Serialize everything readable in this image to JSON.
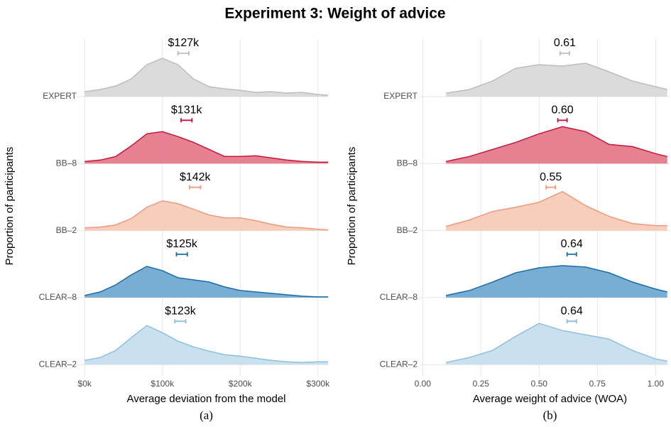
{
  "title": "Experiment 3: Weight of advice",
  "chart_data": [
    {
      "type": "ridgeline",
      "subfigure_label": "(a)",
      "ylabel": "Proportion of participants",
      "xlabel": "Average deviation from the model",
      "xlim": [
        -13000,
        313000
      ],
      "xticks": [
        {
          "value": 0,
          "label": "$0k"
        },
        {
          "value": 100000,
          "label": "$100k"
        },
        {
          "value": 200000,
          "label": "$200k"
        },
        {
          "value": 300000,
          "label": "$300k"
        }
      ],
      "grid": true,
      "x": [
        0,
        20000,
        40000,
        60000,
        80000,
        100000,
        120000,
        140000,
        160000,
        180000,
        200000,
        220000,
        240000,
        260000,
        280000,
        300000,
        313000
      ],
      "series": [
        {
          "name": "EXPERT",
          "color": "#bdbdbd",
          "fill": "#d9d9d9",
          "values": [
            0.07,
            0.1,
            0.15,
            0.25,
            0.45,
            0.54,
            0.45,
            0.25,
            0.14,
            0.11,
            0.09,
            0.06,
            0.07,
            0.05,
            0.06,
            0.03,
            0.02
          ],
          "mean": 127000,
          "error": 7000,
          "value_label": "$127k"
        },
        {
          "name": "BB–8",
          "color": "#c4163a",
          "fill": "#e57a8c",
          "values": [
            0.03,
            0.05,
            0.1,
            0.25,
            0.42,
            0.45,
            0.38,
            0.3,
            0.2,
            0.1,
            0.1,
            0.11,
            0.08,
            0.05,
            0.03,
            0.02,
            0.02
          ],
          "mean": 131000,
          "error": 7000,
          "value_label": "$131k"
        },
        {
          "name": "BB–2",
          "color": "#ee9a7b",
          "fill": "#f7cbb8",
          "values": [
            0.04,
            0.05,
            0.08,
            0.17,
            0.33,
            0.42,
            0.38,
            0.3,
            0.22,
            0.18,
            0.18,
            0.14,
            0.09,
            0.05,
            0.04,
            0.02,
            0.01
          ],
          "mean": 142000,
          "error": 7000,
          "value_label": "$142k"
        },
        {
          "name": "CLEAR–8",
          "color": "#1b6ca8",
          "fill": "#72aad2",
          "values": [
            0.03,
            0.08,
            0.18,
            0.32,
            0.44,
            0.38,
            0.28,
            0.25,
            0.22,
            0.15,
            0.1,
            0.08,
            0.06,
            0.04,
            0.02,
            0.01,
            0.01
          ],
          "mean": 125000,
          "error": 7000,
          "value_label": "$125k"
        },
        {
          "name": "CLEAR–2",
          "color": "#8ebfdc",
          "fill": "#c6deee",
          "values": [
            0.06,
            0.1,
            0.2,
            0.38,
            0.55,
            0.45,
            0.33,
            0.25,
            0.19,
            0.14,
            0.12,
            0.09,
            0.06,
            0.04,
            0.03,
            0.04,
            0.04
          ],
          "mean": 123000,
          "error": 7000,
          "value_label": "$123k"
        }
      ]
    },
    {
      "type": "ridgeline",
      "subfigure_label": "(b)",
      "ylabel": "Proportion of participants",
      "xlabel": "Average weight of advice (WOA)",
      "xlim": [
        -0.01,
        1.06
      ],
      "xticks": [
        {
          "value": 0,
          "label": "0.00"
        },
        0.25,
        {
          "value": 0.5,
          "label": "0.50"
        },
        0.75,
        {
          "value": 1,
          "label": "1.00"
        }
      ],
      "grid": true,
      "x": [
        0.1,
        0.2,
        0.3,
        0.4,
        0.5,
        0.6,
        0.7,
        0.8,
        0.9,
        1.0,
        1.05
      ],
      "series": [
        {
          "name": "EXPERT",
          "color": "#bdbdbd",
          "fill": "#d9d9d9",
          "values": [
            0.05,
            0.1,
            0.22,
            0.4,
            0.45,
            0.43,
            0.47,
            0.35,
            0.22,
            0.14,
            0.1
          ],
          "mean": 0.61,
          "error": 0.02,
          "value_label": "0.61"
        },
        {
          "name": "BB–8",
          "color": "#c4163a",
          "fill": "#e57a8c",
          "values": [
            0.03,
            0.1,
            0.2,
            0.3,
            0.42,
            0.52,
            0.45,
            0.27,
            0.24,
            0.14,
            0.1
          ],
          "mean": 0.6,
          "error": 0.02,
          "value_label": "0.60"
        },
        {
          "name": "BB–2",
          "color": "#ee9a7b",
          "fill": "#f7cbb8",
          "values": [
            0.06,
            0.15,
            0.27,
            0.33,
            0.4,
            0.55,
            0.35,
            0.2,
            0.1,
            0.07,
            0.07
          ],
          "mean": 0.55,
          "error": 0.02,
          "value_label": "0.55"
        },
        {
          "name": "CLEAR–8",
          "color": "#1b6ca8",
          "fill": "#72aad2",
          "values": [
            0.03,
            0.1,
            0.22,
            0.35,
            0.42,
            0.45,
            0.43,
            0.35,
            0.22,
            0.12,
            0.08
          ],
          "mean": 0.64,
          "error": 0.02,
          "value_label": "0.64"
        },
        {
          "name": "CLEAR–2",
          "color": "#8ebfdc",
          "fill": "#c6deee",
          "values": [
            0.03,
            0.1,
            0.2,
            0.4,
            0.58,
            0.48,
            0.42,
            0.36,
            0.2,
            0.08,
            0.05
          ],
          "mean": 0.64,
          "error": 0.02,
          "value_label": "0.64"
        }
      ]
    }
  ]
}
